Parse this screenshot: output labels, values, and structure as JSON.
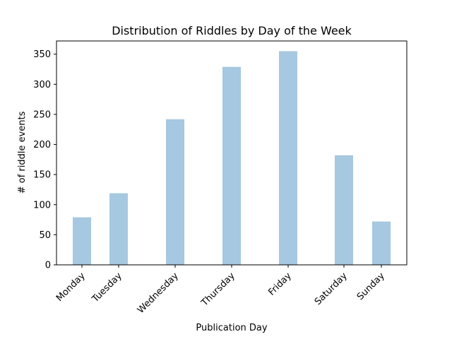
{
  "chart_data": {
    "type": "bar",
    "title": "Distribution of Riddles by Day of the Week",
    "xlabel": "Publication Day",
    "ylabel": "# of riddle events",
    "categories": [
      "Monday",
      "Tuesday",
      "Wednesday",
      "Thursday",
      "Friday",
      "Saturday",
      "Sunday"
    ],
    "values": [
      79,
      119,
      242,
      329,
      355,
      182,
      72
    ],
    "ylim": [
      0,
      372
    ],
    "yticks": [
      0,
      50,
      100,
      150,
      200,
      250,
      300,
      350
    ],
    "grid": false,
    "legend": "none",
    "bar_color": "#a6c8e0"
  }
}
